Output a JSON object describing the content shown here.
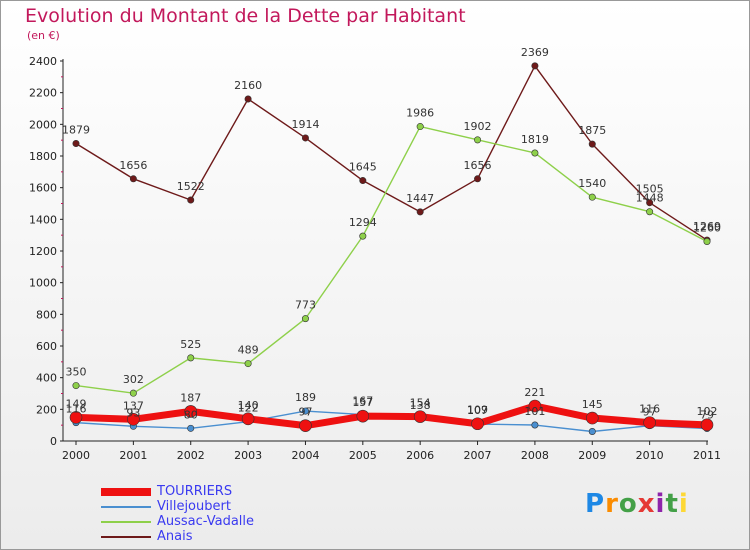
{
  "header": {
    "title": "Evolution du Montant de la Dette par Habitant",
    "unit": "(en €)"
  },
  "logo": {
    "text": "Proxiti",
    "letters": [
      "P",
      "r",
      "o",
      "x",
      "i",
      "t",
      "i"
    ],
    "colors": [
      "#1e88e5",
      "#fb8c00",
      "#43a047",
      "#e53935",
      "#8e24aa",
      "#43a047",
      "#fdd835"
    ]
  },
  "chart_data": {
    "type": "line",
    "title": "Evolution du Montant de la Dette par Habitant",
    "ylabel": "(en €)",
    "x": [
      "2000",
      "2001",
      "2002",
      "2003",
      "2004",
      "2005",
      "2006",
      "2007",
      "2008",
      "2009",
      "2010",
      "2011"
    ],
    "ylim": [
      0,
      2400
    ],
    "yticks": [
      "0",
      "200",
      "400",
      "600",
      "800",
      "1000",
      "1200",
      "1400",
      "1600",
      "1800",
      "2000",
      "2200",
      "2400"
    ],
    "grid": false,
    "legend_position": "bottom-left",
    "series": [
      {
        "name": "TOURRIERS",
        "color": "#ee1111",
        "width": 7,
        "values": [
          149,
          137,
          187,
          140,
          97,
          157,
          154,
          109,
          221,
          145,
          116,
          102
        ],
        "labels": [
          "149",
          "137",
          "187",
          "140",
          "97",
          "157",
          "154",
          "109",
          "221",
          "145",
          "116",
          "102"
        ]
      },
      {
        "name": "Villejoubert",
        "color": "#4a8fd0",
        "width": 1.4,
        "values": [
          116,
          93,
          80,
          122,
          189,
          167,
          138,
          107,
          101,
          60,
          97,
          79
        ],
        "labels": [
          "116",
          "93",
          "80",
          "122",
          "189",
          "167",
          "138",
          "107",
          "101",
          "",
          "97",
          "79"
        ]
      },
      {
        "name": "Aussac-Vadalle",
        "color": "#8ed04a",
        "width": 1.4,
        "values": [
          350,
          302,
          525,
          489,
          773,
          1294,
          1986,
          1902,
          1819,
          1540,
          1448,
          1260
        ],
        "labels": [
          "350",
          "302",
          "525",
          "489",
          "773",
          "1294",
          "1986",
          "1902",
          "1819",
          "1540",
          "1448",
          "1260"
        ]
      },
      {
        "name": "Anais",
        "color": "#6e1a1a",
        "width": 1.4,
        "values": [
          1879,
          1656,
          1522,
          2160,
          1914,
          1645,
          1447,
          1656,
          2369,
          1875,
          1505,
          1269
        ],
        "labels": [
          "1879",
          "1656",
          "1522",
          "2160",
          "1914",
          "1645",
          "1447",
          "1656",
          "2369",
          "1875",
          "1505",
          "1269"
        ]
      }
    ]
  }
}
